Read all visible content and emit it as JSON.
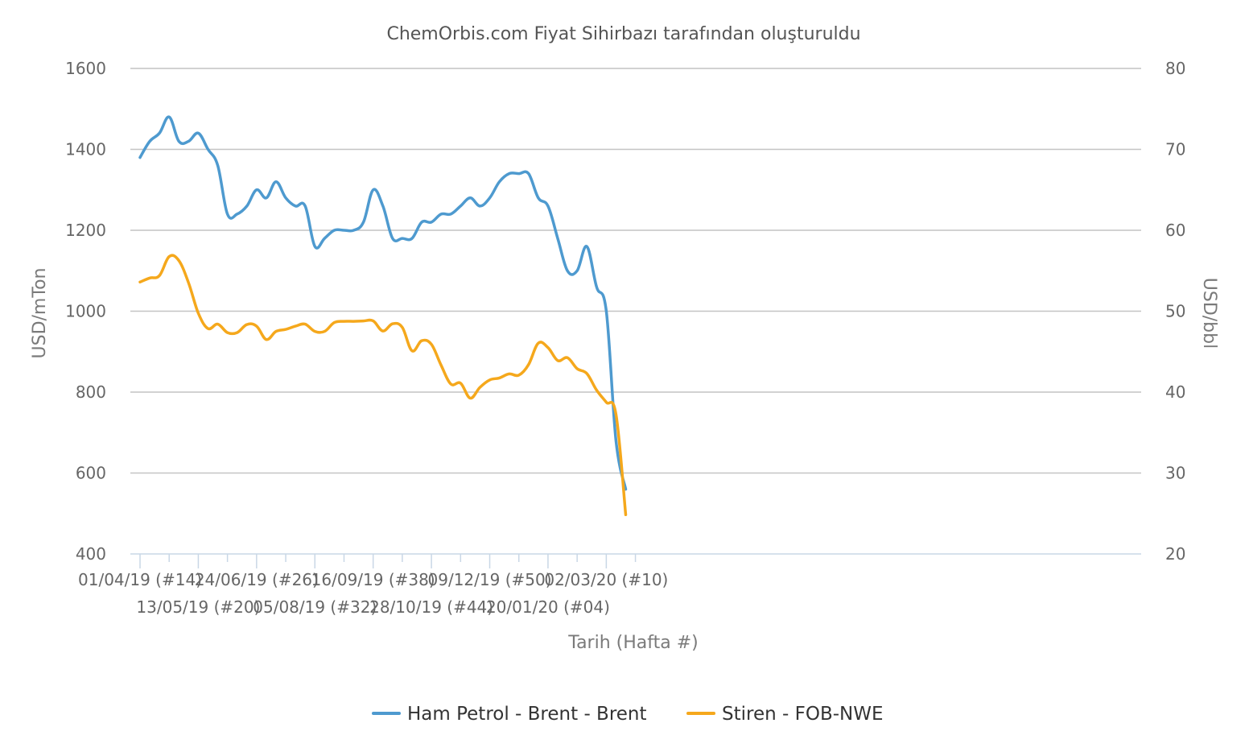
{
  "chart_data": {
    "type": "line",
    "title": "ChemOrbis.com Fiyat Sihirbazı tarafından oluşturuldu",
    "xlabel": "Tarih (Hafta #)",
    "ylabel_left": "USD/mTon",
    "ylabel_right": "USD/bbl",
    "ylim_left": [
      400,
      1600
    ],
    "ylim_right": [
      20,
      80
    ],
    "yticks_left": [
      "400",
      "600",
      "800",
      "1000",
      "1200",
      "1400",
      "1600"
    ],
    "yticks_right": [
      "20",
      "30",
      "40",
      "50",
      "60",
      "70",
      "80"
    ],
    "xtick_labels": [
      {
        "week": 0,
        "label": "01/04/19 (#14)",
        "row": 1
      },
      {
        "week": 6,
        "label": "13/05/19 (#20)",
        "row": 2
      },
      {
        "week": 12,
        "label": "24/06/19 (#26)",
        "row": 1
      },
      {
        "week": 18,
        "label": "05/08/19 (#32)",
        "row": 2
      },
      {
        "week": 24,
        "label": "16/09/19 (#38)",
        "row": 1
      },
      {
        "week": 30,
        "label": "28/10/19 (#44)",
        "row": 2
      },
      {
        "week": 36,
        "label": "09/12/19 (#50)",
        "row": 1
      },
      {
        "week": 42,
        "label": "20/01/20 (#04)",
        "row": 2
      },
      {
        "week": 48,
        "label": "02/03/20 (#10)",
        "row": 1
      }
    ],
    "grid": true,
    "legend_position": "bottom-center",
    "series": [
      {
        "name": "Ham Petrol - Brent - Brent",
        "color": "#4e9acf",
        "axis": "right",
        "x": [
          0,
          1,
          2,
          3,
          4,
          5,
          6,
          7,
          8,
          9,
          10,
          11,
          12,
          13,
          14,
          15,
          16,
          17,
          18,
          19,
          20,
          21,
          22,
          23,
          24,
          25,
          26,
          27,
          28,
          29,
          30,
          31,
          32,
          33,
          34,
          35,
          36,
          37,
          38,
          39,
          40,
          41,
          42,
          43,
          44,
          45,
          46,
          47,
          48,
          49,
          50
        ],
        "values": [
          69,
          71,
          72,
          74,
          71,
          71,
          72,
          70,
          68,
          62,
          62,
          63,
          65,
          64,
          66,
          64,
          63,
          63,
          58,
          59,
          60,
          60,
          60,
          61,
          65,
          63,
          59,
          59,
          59,
          61,
          61,
          62,
          62,
          63,
          64,
          63,
          64,
          66,
          67,
          67,
          67,
          64,
          63,
          59,
          55,
          55,
          58,
          53,
          50,
          34,
          28
        ]
      },
      {
        "name": "Stiren - FOB-NWE",
        "color": "#f5a81c",
        "axis": "left",
        "x": [
          0,
          1,
          2,
          3,
          4,
          5,
          6,
          7,
          8,
          9,
          10,
          11,
          12,
          13,
          14,
          15,
          16,
          17,
          18,
          19,
          20,
          21,
          22,
          23,
          24,
          25,
          26,
          27,
          28,
          29,
          30,
          31,
          32,
          33,
          34,
          35,
          36,
          37,
          38,
          39,
          40,
          41,
          42,
          43,
          44,
          45,
          46,
          47,
          48,
          49,
          50
        ],
        "values": [
          1072,
          1082,
          1088,
          1135,
          1125,
          1070,
          995,
          957,
          968,
          947,
          947,
          967,
          963,
          930,
          950,
          955,
          963,
          968,
          950,
          950,
          972,
          975,
          975,
          976,
          976,
          951,
          969,
          960,
          902,
          927,
          918,
          866,
          820,
          822,
          785,
          812,
          830,
          835,
          845,
          842,
          868,
          921,
          910,
          878,
          885,
          858,
          846,
          805,
          775,
          745,
          497
        ]
      }
    ]
  }
}
